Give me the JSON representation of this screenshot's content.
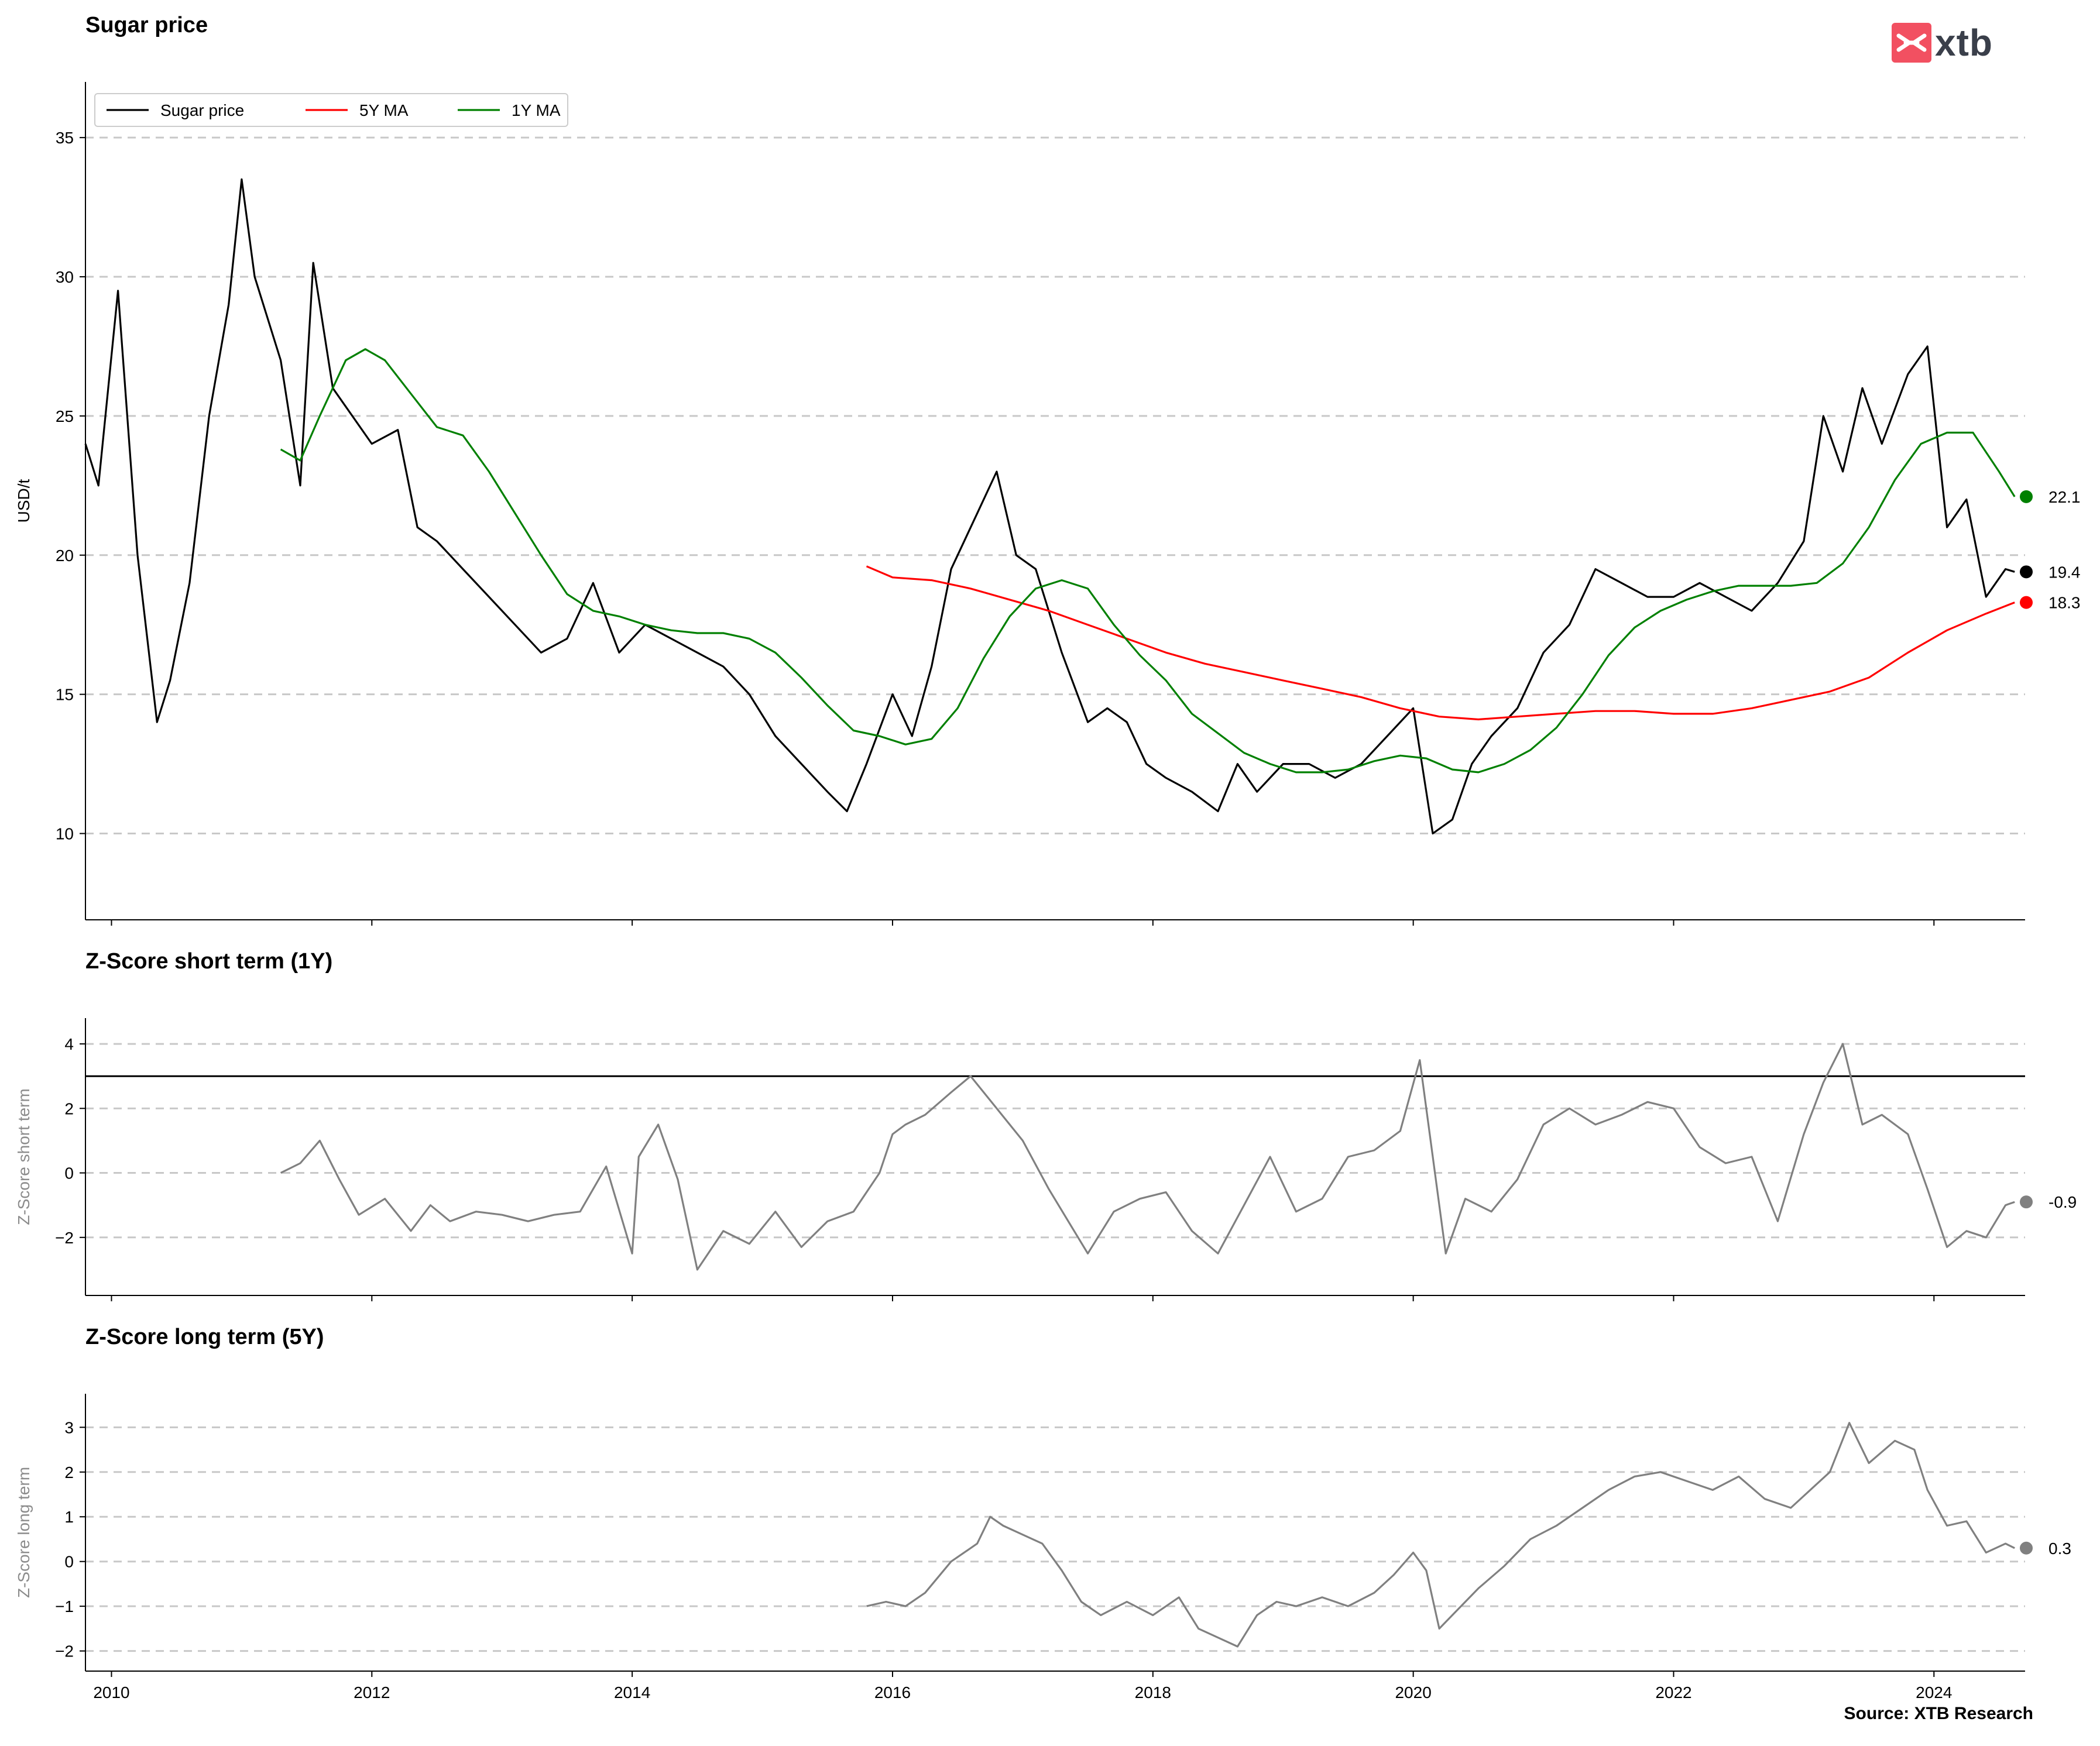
{
  "header": {
    "title_main": "Sugar price",
    "title_short": "Z-Score short term (1Y)",
    "title_long": "Z-Score long term (5Y)",
    "source": "Source: XTB Research",
    "logo_text": "xtb"
  },
  "colors": {
    "price": "#000000",
    "ma5y": "#ff0000",
    "ma1y": "#008000",
    "zscore": "#808080",
    "logo": "#f25061",
    "grid": "#c8c8c8"
  },
  "chart_data": [
    {
      "type": "line",
      "title": "Sugar price",
      "ylabel": "USD/t",
      "xlim": [
        2009.8,
        2024.7
      ],
      "ylim": [
        6.9,
        37
      ],
      "yticks": [
        10,
        15,
        20,
        25,
        30,
        35
      ],
      "grid": "horizontal-dashed",
      "legend": "top-left",
      "series": [
        {
          "name": "Sugar price",
          "color": "#000000",
          "x": [
            2009.8,
            2009.9,
            2010.05,
            2010.2,
            2010.35,
            2010.45,
            2010.6,
            2010.75,
            2010.9,
            2011.0,
            2011.1,
            2011.3,
            2011.45,
            2011.55,
            2011.7,
            2011.85,
            2012.0,
            2012.2,
            2012.35,
            2012.5,
            2012.7,
            2012.9,
            2013.1,
            2013.3,
            2013.5,
            2013.7,
            2013.9,
            2014.1,
            2014.3,
            2014.5,
            2014.7,
            2014.9,
            2015.1,
            2015.3,
            2015.5,
            2015.65,
            2015.8,
            2016.0,
            2016.15,
            2016.3,
            2016.45,
            2016.65,
            2016.8,
            2016.95,
            2017.1,
            2017.3,
            2017.5,
            2017.65,
            2017.8,
            2017.95,
            2018.1,
            2018.3,
            2018.5,
            2018.65,
            2018.8,
            2019.0,
            2019.2,
            2019.4,
            2019.6,
            2019.8,
            2020.0,
            2020.15,
            2020.3,
            2020.45,
            2020.6,
            2020.8,
            2021.0,
            2021.2,
            2021.4,
            2021.6,
            2021.8,
            2022.0,
            2022.2,
            2022.4,
            2022.6,
            2022.8,
            2023.0,
            2023.15,
            2023.3,
            2023.45,
            2023.6,
            2023.8,
            2023.95,
            2024.1,
            2024.25,
            2024.4,
            2024.55,
            2024.62
          ],
          "values": [
            24.0,
            22.5,
            29.5,
            20.0,
            14.0,
            15.5,
            19.0,
            25.0,
            29.0,
            33.5,
            30.0,
            27.0,
            22.5,
            30.5,
            26.0,
            25.0,
            24.0,
            24.5,
            21.0,
            20.5,
            19.5,
            18.5,
            17.5,
            16.5,
            17.0,
            19.0,
            16.5,
            17.5,
            17.0,
            16.5,
            16.0,
            15.0,
            13.5,
            12.5,
            11.5,
            10.8,
            12.5,
            15.0,
            13.5,
            16.0,
            19.5,
            21.5,
            23.0,
            20.0,
            19.5,
            16.5,
            14.0,
            14.5,
            14.0,
            12.5,
            12.0,
            11.5,
            10.8,
            12.5,
            11.5,
            12.5,
            12.5,
            12.0,
            12.5,
            13.5,
            14.5,
            10.0,
            10.5,
            12.5,
            13.5,
            14.5,
            16.5,
            17.5,
            19.5,
            19.0,
            18.5,
            18.5,
            19.0,
            18.5,
            18.0,
            19.0,
            20.5,
            25.0,
            23.0,
            26.0,
            24.0,
            26.5,
            27.5,
            21.0,
            22.0,
            18.5,
            19.5,
            19.4
          ]
        },
        {
          "name": "5Y MA",
          "color": "#ff0000",
          "x": [
            2015.8,
            2016.0,
            2016.3,
            2016.6,
            2016.9,
            2017.2,
            2017.5,
            2017.8,
            2018.1,
            2018.4,
            2018.7,
            2019.0,
            2019.3,
            2019.6,
            2019.9,
            2020.2,
            2020.5,
            2020.8,
            2021.1,
            2021.4,
            2021.7,
            2022.0,
            2022.3,
            2022.6,
            2022.9,
            2023.2,
            2023.5,
            2023.8,
            2024.1,
            2024.4,
            2024.62
          ],
          "values": [
            19.6,
            19.2,
            19.1,
            18.8,
            18.4,
            18.0,
            17.5,
            17.0,
            16.5,
            16.1,
            15.8,
            15.5,
            15.2,
            14.9,
            14.5,
            14.2,
            14.1,
            14.2,
            14.3,
            14.4,
            14.4,
            14.3,
            14.3,
            14.5,
            14.8,
            15.1,
            15.6,
            16.5,
            17.3,
            17.9,
            18.3
          ]
        },
        {
          "name": "1Y MA",
          "color": "#008000",
          "x": [
            2011.3,
            2011.45,
            2011.6,
            2011.8,
            2011.95,
            2012.1,
            2012.3,
            2012.5,
            2012.7,
            2012.9,
            2013.1,
            2013.3,
            2013.5,
            2013.7,
            2013.9,
            2014.1,
            2014.3,
            2014.5,
            2014.7,
            2014.9,
            2015.1,
            2015.3,
            2015.5,
            2015.7,
            2015.9,
            2016.1,
            2016.3,
            2016.5,
            2016.7,
            2016.9,
            2017.1,
            2017.3,
            2017.5,
            2017.7,
            2017.9,
            2018.1,
            2018.3,
            2018.5,
            2018.7,
            2018.9,
            2019.1,
            2019.3,
            2019.5,
            2019.7,
            2019.9,
            2020.1,
            2020.3,
            2020.5,
            2020.7,
            2020.9,
            2021.1,
            2021.3,
            2021.5,
            2021.7,
            2021.9,
            2022.1,
            2022.3,
            2022.5,
            2022.7,
            2022.9,
            2023.1,
            2023.3,
            2023.5,
            2023.7,
            2023.9,
            2024.1,
            2024.3,
            2024.5,
            2024.62
          ],
          "values": [
            23.8,
            23.4,
            25.0,
            27.0,
            27.4,
            27.0,
            25.8,
            24.6,
            24.3,
            23.0,
            21.5,
            20.0,
            18.6,
            18.0,
            17.8,
            17.5,
            17.3,
            17.2,
            17.2,
            17.0,
            16.5,
            15.6,
            14.6,
            13.7,
            13.5,
            13.2,
            13.4,
            14.5,
            16.3,
            17.8,
            18.8,
            19.1,
            18.8,
            17.5,
            16.4,
            15.5,
            14.3,
            13.6,
            12.9,
            12.5,
            12.2,
            12.2,
            12.3,
            12.6,
            12.8,
            12.7,
            12.3,
            12.2,
            12.5,
            13.0,
            13.8,
            15.0,
            16.4,
            17.4,
            18.0,
            18.4,
            18.7,
            18.9,
            18.9,
            18.9,
            19.0,
            19.7,
            21.0,
            22.7,
            24.0,
            24.4,
            24.4,
            23.0,
            22.1
          ]
        }
      ],
      "last_values": [
        {
          "series": "1Y MA",
          "value": 22.1,
          "label": "22.1"
        },
        {
          "series": "Sugar price",
          "value": 19.4,
          "label": "19.4"
        },
        {
          "series": "5Y MA",
          "value": 18.3,
          "label": "18.3"
        }
      ]
    },
    {
      "type": "line",
      "title": "Z-Score short term (1Y)",
      "ylabel": "Z-Score short term",
      "xlim": [
        2009.8,
        2024.7
      ],
      "ylim": [
        -3.8,
        4.8
      ],
      "yticks": [
        -2,
        0,
        2,
        4
      ],
      "threshold": 3,
      "grid": "horizontal-dashed",
      "series": [
        {
          "color": "#808080",
          "x": [
            2011.3,
            2011.45,
            2011.6,
            2011.75,
            2011.9,
            2012.1,
            2012.3,
            2012.45,
            2012.6,
            2012.8,
            2013.0,
            2013.2,
            2013.4,
            2013.6,
            2013.8,
            2014.0,
            2014.05,
            2014.2,
            2014.35,
            2014.5,
            2014.7,
            2014.9,
            2015.1,
            2015.3,
            2015.5,
            2015.7,
            2015.9,
            2016.0,
            2016.1,
            2016.25,
            2016.45,
            2016.6,
            2016.8,
            2017.0,
            2017.2,
            2017.35,
            2017.5,
            2017.7,
            2017.9,
            2018.1,
            2018.3,
            2018.5,
            2018.7,
            2018.9,
            2019.1,
            2019.3,
            2019.5,
            2019.7,
            2019.9,
            2020.05,
            2020.15,
            2020.25,
            2020.4,
            2020.6,
            2020.8,
            2021.0,
            2021.2,
            2021.4,
            2021.6,
            2021.8,
            2022.0,
            2022.2,
            2022.4,
            2022.6,
            2022.8,
            2023.0,
            2023.15,
            2023.3,
            2023.45,
            2023.6,
            2023.8,
            2023.95,
            2024.1,
            2024.25,
            2024.4,
            2024.55,
            2024.62
          ],
          "values": [
            0.0,
            0.3,
            1.0,
            -0.2,
            -1.3,
            -0.8,
            -1.8,
            -1.0,
            -1.5,
            -1.2,
            -1.3,
            -1.5,
            -1.3,
            -1.2,
            0.2,
            -2.5,
            0.5,
            1.5,
            -0.2,
            -3.0,
            -1.8,
            -2.2,
            -1.2,
            -2.3,
            -1.5,
            -1.2,
            0.0,
            1.2,
            1.5,
            1.8,
            2.5,
            3.0,
            2.0,
            1.0,
            -0.5,
            -1.5,
            -2.5,
            -1.2,
            -0.8,
            -0.6,
            -1.8,
            -2.5,
            -1.0,
            0.5,
            -1.2,
            -0.8,
            0.5,
            0.7,
            1.3,
            3.5,
            0.5,
            -2.5,
            -0.8,
            -1.2,
            -0.2,
            1.5,
            2.0,
            1.5,
            1.8,
            2.2,
            2.0,
            0.8,
            0.3,
            0.5,
            -1.5,
            1.2,
            2.8,
            4.0,
            1.5,
            1.8,
            1.2,
            -0.5,
            -2.3,
            -1.8,
            -2.0,
            -1.0,
            -0.9
          ]
        }
      ],
      "last_values": [
        {
          "value": -0.9,
          "label": "-0.9"
        }
      ]
    },
    {
      "type": "line",
      "title": "Z-Score long term (5Y)",
      "ylabel": "Z-Score long term",
      "xlim": [
        2009.8,
        2024.7
      ],
      "ylim": [
        -2.45,
        3.75
      ],
      "yticks": [
        -2,
        -1,
        0,
        1,
        2,
        3
      ],
      "xticks": [
        2010,
        2012,
        2014,
        2016,
        2018,
        2020,
        2022,
        2024
      ],
      "xlabel": "",
      "grid": "horizontal-dashed",
      "series": [
        {
          "color": "#808080",
          "x": [
            2015.8,
            2015.95,
            2016.1,
            2016.25,
            2016.45,
            2016.65,
            2016.75,
            2016.85,
            2017.0,
            2017.15,
            2017.3,
            2017.45,
            2017.6,
            2017.8,
            2018.0,
            2018.2,
            2018.35,
            2018.5,
            2018.65,
            2018.8,
            2018.95,
            2019.1,
            2019.3,
            2019.5,
            2019.7,
            2019.85,
            2020.0,
            2020.1,
            2020.2,
            2020.3,
            2020.5,
            2020.7,
            2020.9,
            2021.1,
            2021.3,
            2021.5,
            2021.7,
            2021.9,
            2022.1,
            2022.3,
            2022.5,
            2022.7,
            2022.9,
            2023.05,
            2023.2,
            2023.35,
            2023.5,
            2023.7,
            2023.85,
            2023.95,
            2024.1,
            2024.25,
            2024.4,
            2024.55,
            2024.62
          ],
          "values": [
            -1.0,
            -0.9,
            -1.0,
            -0.7,
            0.0,
            0.4,
            1.0,
            0.8,
            0.6,
            0.4,
            -0.2,
            -0.9,
            -1.2,
            -0.9,
            -1.2,
            -0.8,
            -1.5,
            -1.7,
            -1.9,
            -1.2,
            -0.9,
            -1.0,
            -0.8,
            -1.0,
            -0.7,
            -0.3,
            0.2,
            -0.2,
            -1.5,
            -1.2,
            -0.6,
            -0.1,
            0.5,
            0.8,
            1.2,
            1.6,
            1.9,
            2.0,
            1.8,
            1.6,
            1.9,
            1.4,
            1.2,
            1.6,
            2.0,
            3.1,
            2.2,
            2.7,
            2.5,
            1.6,
            0.8,
            0.9,
            0.2,
            0.4,
            0.3
          ]
        }
      ],
      "last_values": [
        {
          "value": 0.3,
          "label": "0.3"
        }
      ]
    }
  ]
}
